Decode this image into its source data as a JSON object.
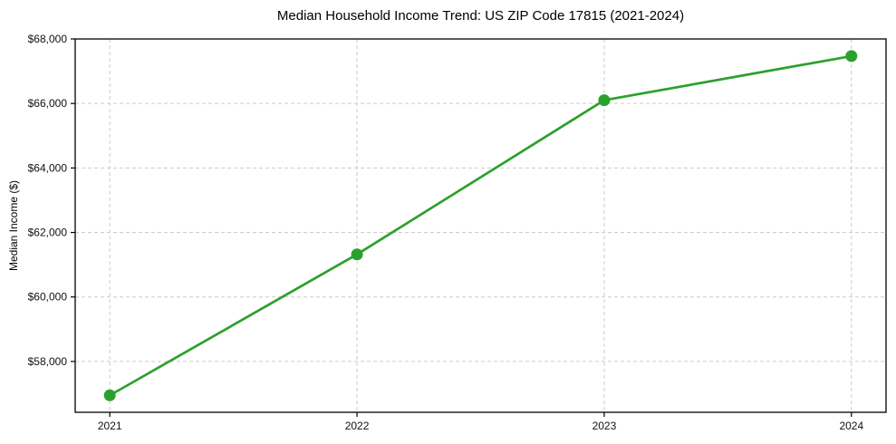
{
  "chart_data": {
    "type": "line",
    "title": "Median Household Income Trend: US ZIP Code 17815 (2021-2024)",
    "xlabel": "",
    "ylabel": "Median Income ($)",
    "x": [
      2021,
      2022,
      2023,
      2024
    ],
    "categories": [
      "2021",
      "2022",
      "2023",
      "2024"
    ],
    "series": [
      {
        "name": "Median Household Income",
        "values": [
          56950,
          61320,
          66100,
          67470
        ]
      }
    ],
    "yticks": [
      {
        "value": 58000,
        "label": "$58,000"
      },
      {
        "value": 60000,
        "label": "$60,000"
      },
      {
        "value": 62000,
        "label": "$62,000"
      },
      {
        "value": 64000,
        "label": "$64,000"
      },
      {
        "value": 66000,
        "label": "$66,000"
      },
      {
        "value": 68000,
        "label": "$68,000"
      }
    ],
    "xlim": [
      2020.86,
      2024.14
    ],
    "ylim": [
      56424,
      68000
    ],
    "grid": true,
    "grid_style": "dashed",
    "legend": "none",
    "colors": {
      "line": "#2ca02c",
      "marker": "#2ca02c",
      "grid": "#cccccc",
      "spine": "#000000",
      "text": "#111111",
      "background": "#ffffff"
    },
    "marker": "circle",
    "marker_radius": 6.5,
    "line_width": 2.7
  }
}
